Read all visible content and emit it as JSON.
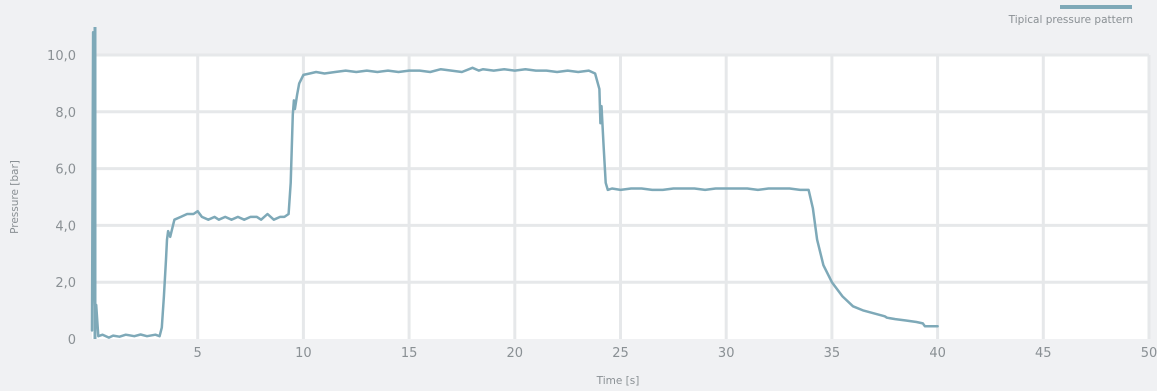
{
  "chart_data": {
    "type": "line",
    "xlabel": "Time [s]",
    "ylabel": "Pressure [bar]",
    "xlim": [
      0,
      50
    ],
    "ylim": [
      0,
      10
    ],
    "x_ticks": [
      "5",
      "10",
      "15",
      "20",
      "25",
      "30",
      "35",
      "40",
      "45",
      "50"
    ],
    "y_ticks": [
      "0",
      "2,0",
      "4,0",
      "6,0",
      "8,0",
      "10,0"
    ],
    "grid": true,
    "legend_position": "top-right",
    "series": [
      {
        "name": "Tipical pressure pattern",
        "color": "#7ea9b8",
        "x": [
          0,
          0.05,
          0.1,
          0.15,
          0.2,
          0.3,
          0.5,
          0.8,
          1.0,
          1.3,
          1.6,
          2.0,
          2.3,
          2.6,
          3.0,
          3.2,
          3.3,
          3.4,
          3.5,
          3.55,
          3.6,
          3.7,
          3.9,
          4.2,
          4.5,
          4.8,
          5.0,
          5.2,
          5.5,
          5.8,
          6.0,
          6.3,
          6.6,
          6.9,
          7.2,
          7.5,
          7.8,
          8.0,
          8.3,
          8.6,
          8.9,
          9.1,
          9.3,
          9.4,
          9.5,
          9.55,
          9.6,
          9.7,
          9.8,
          10.0,
          10.3,
          10.6,
          11.0,
          11.5,
          12.0,
          12.5,
          13.0,
          13.5,
          14.0,
          14.5,
          15.0,
          15.5,
          16.0,
          16.5,
          17.0,
          17.5,
          18.0,
          18.3,
          18.5,
          19.0,
          19.5,
          20.0,
          20.5,
          21.0,
          21.5,
          22.0,
          22.5,
          23.0,
          23.5,
          23.8,
          24.0,
          24.05,
          24.1,
          24.2,
          24.3,
          24.4,
          24.6,
          25.0,
          25.5,
          26.0,
          26.5,
          27.0,
          27.5,
          28.0,
          28.5,
          29.0,
          29.5,
          30.0,
          30.5,
          31.0,
          31.5,
          32.0,
          32.5,
          33.0,
          33.5,
          33.9,
          34.1,
          34.3,
          34.6,
          35.0,
          35.5,
          36.0,
          36.5,
          37.0,
          37.5,
          37.6,
          38.0,
          38.5,
          39.0,
          39.3,
          39.4,
          39.6,
          40.0
        ],
        "y": [
          0.3,
          10.8,
          2.2,
          0.4,
          1.2,
          0.1,
          0.15,
          0.05,
          0.12,
          0.08,
          0.15,
          0.1,
          0.16,
          0.1,
          0.15,
          0.1,
          0.4,
          1.5,
          2.8,
          3.5,
          3.8,
          3.6,
          4.2,
          4.3,
          4.4,
          4.4,
          4.5,
          4.3,
          4.2,
          4.3,
          4.2,
          4.3,
          4.2,
          4.3,
          4.2,
          4.3,
          4.3,
          4.2,
          4.4,
          4.2,
          4.3,
          4.3,
          4.4,
          5.5,
          7.9,
          8.4,
          8.1,
          8.6,
          9.0,
          9.3,
          9.35,
          9.4,
          9.35,
          9.4,
          9.45,
          9.4,
          9.45,
          9.4,
          9.45,
          9.4,
          9.45,
          9.45,
          9.4,
          9.5,
          9.45,
          9.4,
          9.55,
          9.45,
          9.5,
          9.45,
          9.5,
          9.45,
          9.5,
          9.45,
          9.45,
          9.4,
          9.45,
          9.4,
          9.45,
          9.35,
          8.8,
          7.6,
          8.2,
          6.8,
          5.5,
          5.25,
          5.3,
          5.25,
          5.3,
          5.3,
          5.25,
          5.25,
          5.3,
          5.3,
          5.3,
          5.25,
          5.3,
          5.3,
          5.3,
          5.3,
          5.25,
          5.3,
          5.3,
          5.3,
          5.25,
          5.25,
          4.6,
          3.5,
          2.6,
          2.0,
          1.5,
          1.15,
          1.0,
          0.9,
          0.8,
          0.75,
          0.7,
          0.65,
          0.6,
          0.55,
          0.45,
          0.45,
          0.45
        ]
      }
    ]
  }
}
